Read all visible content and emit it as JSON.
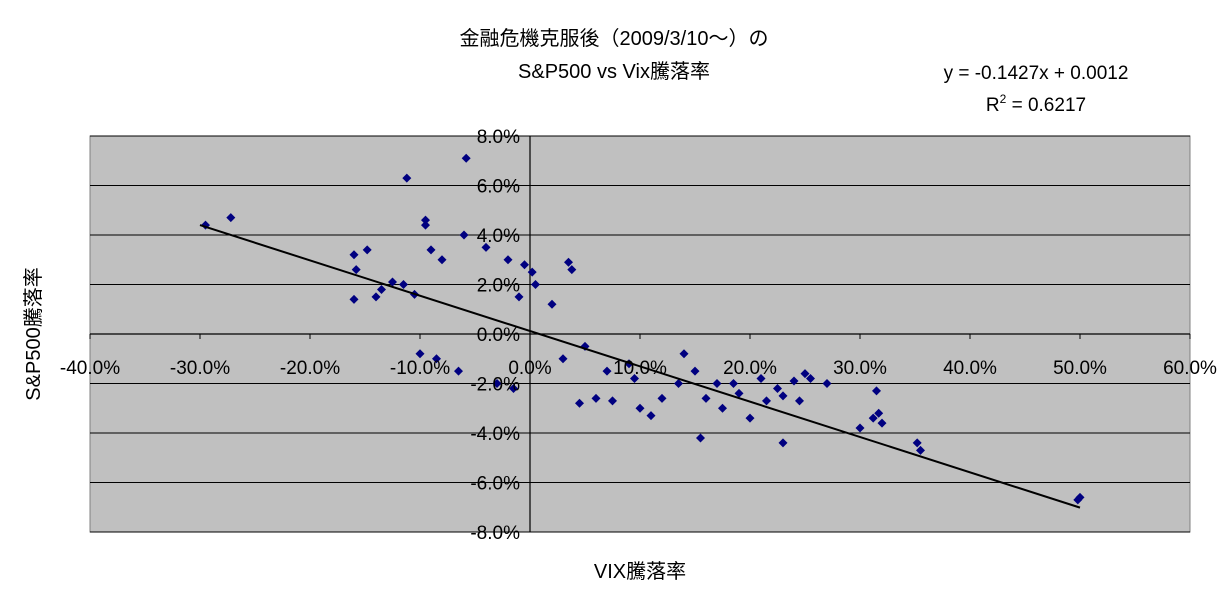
{
  "chart_data": {
    "type": "scatter",
    "title": [
      "金融危機克服後（2009/3/10～）の",
      "S&P500 vs Vix騰落率"
    ],
    "xlabel": "VIX騰落率",
    "ylabel": "S&P500騰落率",
    "xlim": [
      -0.4,
      0.6
    ],
    "ylim": [
      -0.08,
      0.08
    ],
    "x_ticks": [
      -0.4,
      -0.3,
      -0.2,
      -0.1,
      0.0,
      0.1,
      0.2,
      0.3,
      0.4,
      0.5,
      0.6
    ],
    "x_tick_labels": [
      "-40.0%",
      "-30.0%",
      "-20.0%",
      "-10.0%",
      "0.0%",
      "10.0%",
      "20.0%",
      "30.0%",
      "40.0%",
      "50.0%",
      "60.0%"
    ],
    "y_ticks": [
      0.08,
      0.06,
      0.04,
      0.02,
      0.0,
      -0.02,
      -0.04,
      -0.06,
      -0.08
    ],
    "y_tick_labels": [
      "8.0%",
      "6.0%",
      "4.0%",
      "2.0%",
      "0.0%",
      "-2.0%",
      "-4.0%",
      "-6.0%",
      "-8.0%"
    ],
    "grid": "horizontal",
    "colors": {
      "plot_bg": "#c0c0c0",
      "marker": "#000080",
      "trendline": "#000000",
      "grid": "#000000"
    },
    "trendline": {
      "equation_label": "y = -0.1427x + 0.0012",
      "r2_prefix": "R",
      "r2_sup": "2",
      "r2_suffix": " = 0.6217",
      "slope": -0.1427,
      "intercept": 0.0012,
      "x_range": [
        -0.3,
        0.5
      ]
    },
    "points": [
      [
        -0.295,
        0.044
      ],
      [
        -0.272,
        0.047
      ],
      [
        -0.112,
        0.063
      ],
      [
        -0.058,
        0.071
      ],
      [
        -0.095,
        0.046
      ],
      [
        -0.095,
        0.044
      ],
      [
        -0.06,
        0.04
      ],
      [
        -0.16,
        0.032
      ],
      [
        -0.148,
        0.034
      ],
      [
        -0.158,
        0.026
      ],
      [
        -0.14,
        0.015
      ],
      [
        -0.16,
        0.014
      ],
      [
        -0.135,
        0.018
      ],
      [
        -0.125,
        0.021
      ],
      [
        -0.115,
        0.02
      ],
      [
        -0.105,
        0.016
      ],
      [
        0.035,
        0.029
      ],
      [
        0.038,
        0.026
      ],
      [
        0.27,
        -0.02
      ],
      [
        0.315,
        -0.023
      ],
      [
        0.3,
        -0.038
      ],
      [
        0.312,
        -0.034
      ],
      [
        0.317,
        -0.032
      ],
      [
        0.32,
        -0.036
      ],
      [
        0.352,
        -0.044
      ],
      [
        0.355,
        -0.047
      ],
      [
        0.498,
        -0.067
      ],
      [
        0.5,
        -0.066
      ],
      [
        0.23,
        -0.044
      ],
      [
        0.155,
        -0.042
      ],
      [
        0.2,
        -0.034
      ],
      [
        0.215,
        -0.027
      ],
      [
        0.25,
        -0.016
      ],
      [
        0.255,
        -0.018
      ],
      [
        0.245,
        -0.027
      ],
      [
        0.185,
        -0.02
      ],
      [
        0.175,
        -0.03
      ],
      [
        0.16,
        -0.026
      ],
      [
        0.135,
        -0.02
      ],
      [
        0.12,
        -0.026
      ],
      [
        0.11,
        -0.033
      ],
      [
        0.1,
        -0.03
      ],
      [
        0.075,
        -0.027
      ],
      [
        0.06,
        -0.026
      ],
      [
        0.045,
        -0.028
      ],
      [
        -0.04,
        0.035
      ],
      [
        -0.09,
        0.034
      ],
      [
        -0.08,
        0.03
      ],
      [
        -0.02,
        0.03
      ],
      [
        -0.005,
        0.028
      ],
      [
        0.002,
        0.025
      ],
      [
        -0.015,
        -0.022
      ],
      [
        -0.03,
        -0.02
      ],
      [
        -0.065,
        -0.015
      ],
      [
        -0.1,
        -0.008
      ],
      [
        -0.085,
        -0.01
      ],
      [
        0.005,
        0.02
      ],
      [
        -0.01,
        0.015
      ],
      [
        0.02,
        0.012
      ],
      [
        0.03,
        -0.01
      ],
      [
        0.05,
        -0.005
      ],
      [
        0.07,
        -0.015
      ],
      [
        0.09,
        -0.012
      ],
      [
        0.095,
        -0.018
      ],
      [
        0.14,
        -0.008
      ],
      [
        0.15,
        -0.015
      ],
      [
        0.17,
        -0.02
      ],
      [
        0.19,
        -0.024
      ],
      [
        0.21,
        -0.018
      ],
      [
        0.225,
        -0.022
      ],
      [
        0.23,
        -0.025
      ],
      [
        0.24,
        -0.019
      ]
    ]
  }
}
